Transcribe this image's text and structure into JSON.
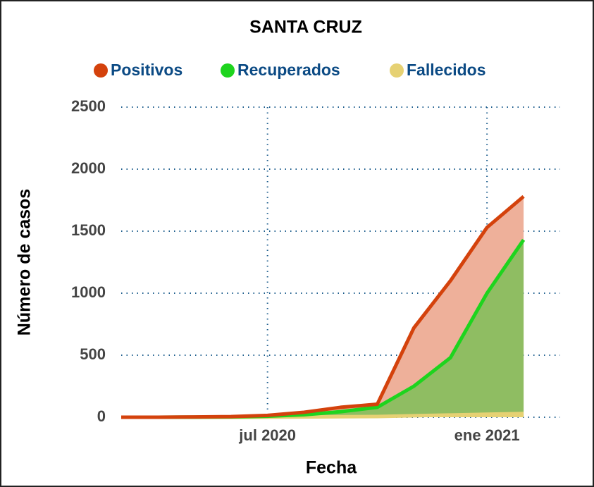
{
  "chart_data": {
    "type": "line",
    "title": "SANTA CRUZ",
    "xlabel": "Fecha",
    "ylabel": "Número de casos",
    "x": [
      "2020-03",
      "2020-04",
      "2020-05",
      "2020-06",
      "2020-07",
      "2020-08",
      "2020-09",
      "2020-10",
      "2020-11",
      "2020-12",
      "2021-01",
      "2021-02"
    ],
    "series": [
      {
        "name": "Positivos",
        "color": "#d4420c",
        "fill": "#eeb09a",
        "values": [
          0,
          0,
          2,
          5,
          15,
          40,
          80,
          105,
          720,
          1100,
          1530,
          1780
        ]
      },
      {
        "name": "Recuperados",
        "color": "#1ed41e",
        "fill": "#8fbd62",
        "values": [
          0,
          0,
          1,
          3,
          8,
          20,
          45,
          80,
          250,
          480,
          1000,
          1430
        ]
      },
      {
        "name": "Fallecidos",
        "color": "#e6d173",
        "fill": "#e6d173",
        "values": [
          0,
          0,
          0,
          0,
          1,
          2,
          4,
          6,
          12,
          18,
          24,
          30
        ]
      }
    ],
    "xlim": [
      "2020-03",
      "2021-03"
    ],
    "xticks": [
      {
        "value": "2020-07",
        "label": "jul 2020"
      },
      {
        "value": "2021-01",
        "label": "ene 2021"
      }
    ],
    "ylim": [
      0,
      2500
    ],
    "yticks": [
      0,
      500,
      1000,
      1500,
      2000,
      2500
    ],
    "grid": true
  }
}
